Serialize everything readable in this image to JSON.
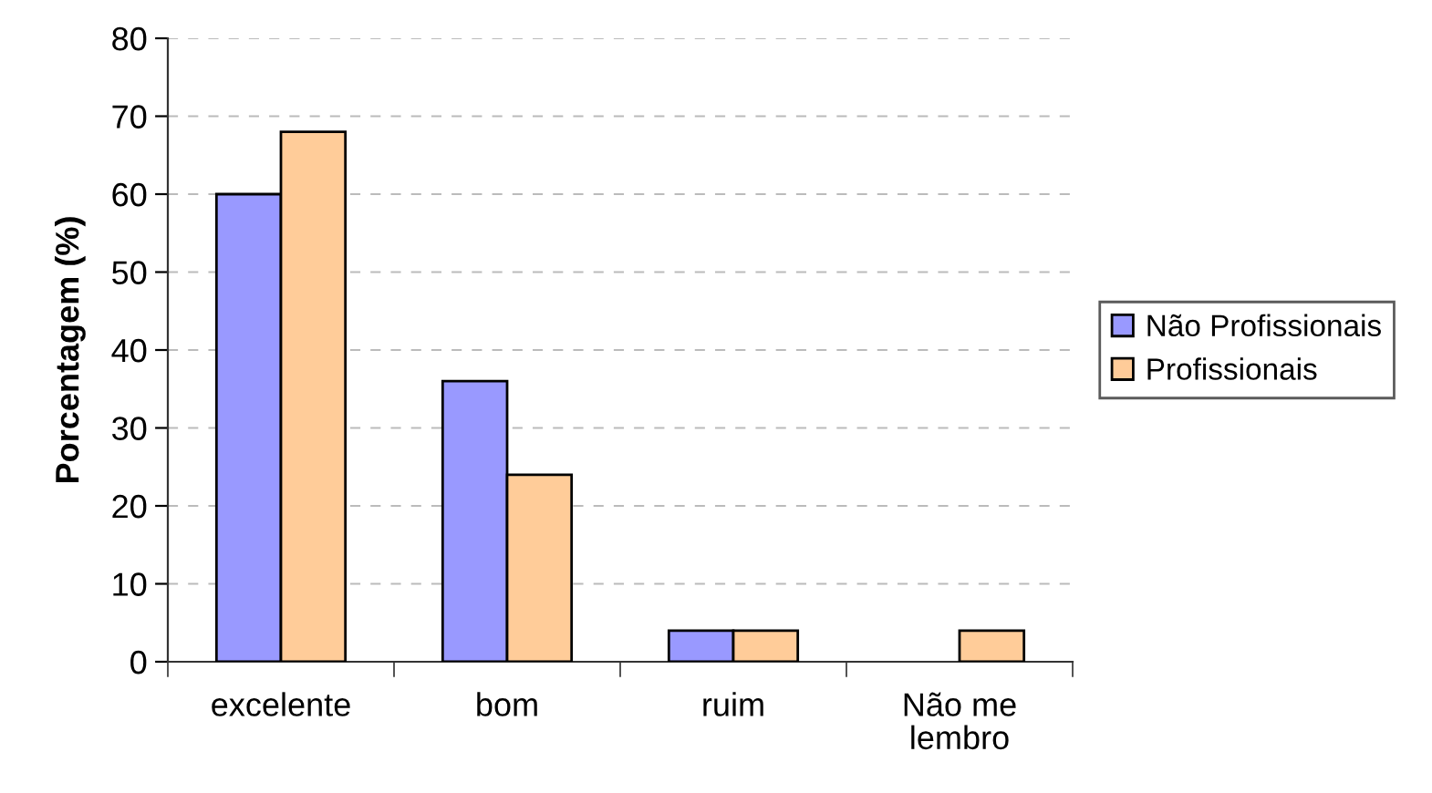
{
  "chart_data": {
    "type": "bar",
    "ylabel": "Porcentagem (%)",
    "categories": [
      "excelente",
      "bom",
      "ruim",
      "Não me\nlembro"
    ],
    "series": [
      {
        "name": "Não Profissionais",
        "color": "#9999ff",
        "values": [
          60,
          36,
          4,
          null
        ]
      },
      {
        "name": "Profissionais",
        "color": "#ffcc99",
        "values": [
          68,
          24,
          4,
          4
        ]
      }
    ],
    "ylim": [
      0,
      80
    ],
    "yticks": [
      0,
      10,
      20,
      30,
      40,
      50,
      60,
      70,
      80
    ],
    "grid": "y",
    "legend": "right"
  }
}
